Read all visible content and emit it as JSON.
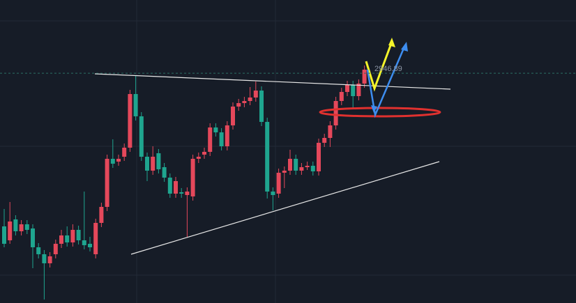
{
  "chart_data": {
    "type": "candlestick",
    "up_color": "#e5485b",
    "down_color": "#1fa58f",
    "ylim": [
      2617,
      3052
    ],
    "current_price": 2946.89,
    "open": [
      2727,
      2707,
      2737,
      2720,
      2730,
      2724,
      2697,
      2687,
      2674,
      2687,
      2702,
      2714,
      2704,
      2722,
      2707,
      2702,
      2687,
      2732,
      2755,
      2824,
      2820,
      2827,
      2840,
      2917,
      2885,
      2827,
      2807,
      2832,
      2812,
      2797,
      2774,
      2776,
      2772,
      2770,
      2824,
      2830,
      2834,
      2869,
      2862,
      2842,
      2872,
      2899,
      2904,
      2907,
      2912,
      2922,
      2877,
      2777,
      2774,
      2804,
      2807,
      2824,
      2807,
      2812,
      2814,
      2806,
      2847,
      2854,
      2872,
      2907,
      2920,
      2930,
      2914,
      2932
    ],
    "high": [
      2752,
      2762,
      2743,
      2736,
      2736,
      2730,
      2703,
      2693,
      2690,
      2708,
      2722,
      2727,
      2730,
      2728,
      2777,
      2712,
      2738,
      2761,
      2830,
      2852,
      2830,
      2846,
      2923,
      2944,
      2891,
      2833,
      2842,
      2838,
      2818,
      2803,
      2798,
      2782,
      2783,
      2830,
      2833,
      2840,
      2875,
      2875,
      2868,
      2878,
      2905,
      2910,
      2913,
      2927,
      2935,
      2928,
      2883,
      2783,
      2810,
      2813,
      2837,
      2830,
      2818,
      2820,
      2820,
      2853,
      2860,
      2878,
      2913,
      2926,
      2936,
      2936,
      2938,
      2958
    ],
    "low": [
      2697,
      2702,
      2714,
      2714,
      2716,
      2667,
      2681,
      2622,
      2668,
      2681,
      2696,
      2698,
      2698,
      2701,
      2694,
      2691,
      2681,
      2726,
      2749,
      2811,
      2814,
      2821,
      2834,
      2879,
      2821,
      2792,
      2801,
      2803,
      2791,
      2768,
      2768,
      2768,
      2712,
      2764,
      2818,
      2824,
      2828,
      2856,
      2836,
      2836,
      2866,
      2893,
      2898,
      2901,
      2906,
      2871,
      2767,
      2750,
      2768,
      2782,
      2801,
      2801,
      2801,
      2808,
      2800,
      2800,
      2841,
      2841,
      2866,
      2901,
      2914,
      2897,
      2908,
      2926
    ],
    "close": [
      2702,
      2734,
      2720,
      2730,
      2722,
      2697,
      2687,
      2674,
      2684,
      2702,
      2714,
      2704,
      2722,
      2707,
      2700,
      2697,
      2732,
      2755,
      2824,
      2817,
      2824,
      2840,
      2917,
      2885,
      2827,
      2807,
      2827,
      2809,
      2797,
      2774,
      2792,
      2774,
      2777,
      2824,
      2827,
      2834,
      2869,
      2862,
      2842,
      2872,
      2899,
      2904,
      2907,
      2912,
      2922,
      2877,
      2777,
      2772,
      2804,
      2807,
      2824,
      2807,
      2812,
      2814,
      2806,
      2847,
      2854,
      2872,
      2907,
      2920,
      2930,
      2914,
      2932,
      2952
    ]
  }
}
